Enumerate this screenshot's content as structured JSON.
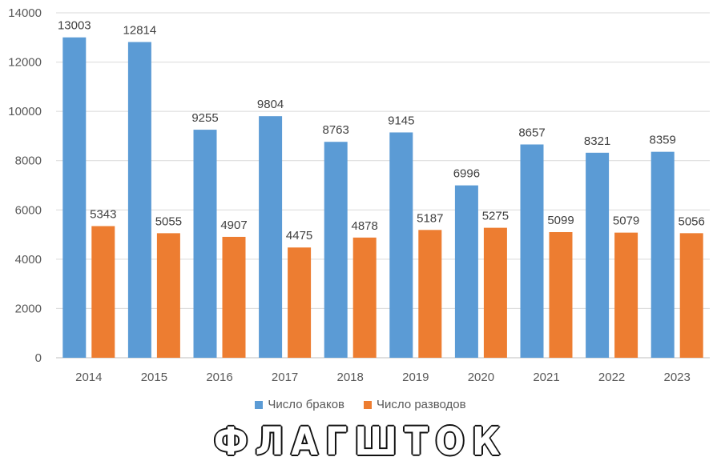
{
  "chart_data": {
    "type": "bar",
    "categories": [
      "2014",
      "2015",
      "2016",
      "2017",
      "2018",
      "2019",
      "2020",
      "2021",
      "2022",
      "2023"
    ],
    "series": [
      {
        "name": "Число браков",
        "color": "#5b9bd5",
        "values": [
          13003,
          12814,
          9255,
          9804,
          8763,
          9145,
          6996,
          8657,
          8321,
          8359
        ]
      },
      {
        "name": "Число разводов",
        "color": "#ed7d31",
        "values": [
          5343,
          5055,
          4907,
          4475,
          4878,
          5187,
          5275,
          5099,
          5079,
          5056
        ]
      }
    ],
    "ylim": [
      0,
      14000
    ],
    "yticks": [
      "0",
      "2000",
      "4000",
      "6000",
      "8000",
      "10000",
      "12000",
      "14000"
    ],
    "grid": true,
    "legend_position": "bottom",
    "data_labels": true
  },
  "watermark": "ФЛАГШТОК"
}
